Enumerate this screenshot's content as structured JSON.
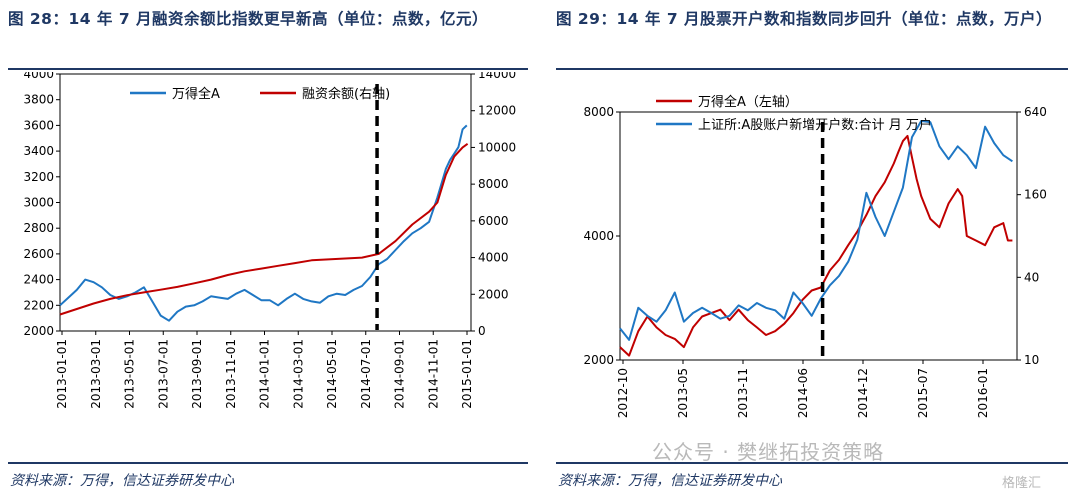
{
  "left": {
    "title": "图 28：14 年 7 月融资余额比指数更早新高（单位：点数，亿元）",
    "source": "资料来源：万得，信达证券研发中心",
    "chart_data": {
      "type": "line",
      "x_tick_labels": [
        "2013-01-01",
        "2013-03-01",
        "2013-05-01",
        "2013-07-01",
        "2013-09-01",
        "2013-11-01",
        "2014-01-01",
        "2014-03-01",
        "2014-05-01",
        "2014-07-01",
        "2014-09-01",
        "2014-11-01",
        "2015-01-01"
      ],
      "y_left_ticks": [
        "2000",
        "2200",
        "2400",
        "2600",
        "2800",
        "3000",
        "3200",
        "3400",
        "3600",
        "3800",
        "4000"
      ],
      "y_right_ticks": [
        "0",
        "2000",
        "4000",
        "6000",
        "8000",
        "10000",
        "12000",
        "14000"
      ],
      "ylim_left": [
        2000,
        4000
      ],
      "ylim_right": [
        0,
        14000
      ],
      "xlim": [
        0,
        24.5
      ],
      "vline_at": 18.9,
      "series": [
        {
          "name": "万得全A",
          "axis": "left",
          "color": "#1f77c4",
          "x": [
            0,
            0.5,
            1,
            1.5,
            2,
            2.5,
            3,
            3.5,
            4,
            4.5,
            5,
            5.5,
            6,
            6.5,
            7,
            7.5,
            8,
            8.5,
            9,
            9.5,
            10,
            10.5,
            11,
            11.5,
            12,
            12.5,
            13,
            13.5,
            14,
            14.5,
            15,
            15.5,
            16,
            16.5,
            17,
            17.5,
            18,
            18.5,
            19,
            19.5,
            20,
            20.5,
            21,
            21.5,
            22,
            22.5,
            23,
            23.25,
            23.5,
            23.75,
            24,
            24.25
          ],
          "y": [
            2200,
            2260,
            2320,
            2400,
            2380,
            2340,
            2280,
            2250,
            2270,
            2300,
            2340,
            2230,
            2120,
            2080,
            2150,
            2190,
            2200,
            2230,
            2270,
            2260,
            2250,
            2290,
            2320,
            2280,
            2240,
            2240,
            2200,
            2250,
            2290,
            2250,
            2230,
            2220,
            2270,
            2290,
            2280,
            2320,
            2350,
            2420,
            2520,
            2560,
            2630,
            2700,
            2760,
            2800,
            2850,
            3040,
            3260,
            3330,
            3380,
            3430,
            3570,
            3600
          ]
        },
        {
          "name": "融资余额(右轴)",
          "axis": "right",
          "color": "#c00000",
          "x": [
            0,
            1,
            2,
            3,
            4,
            5,
            6,
            7,
            8,
            9,
            10,
            11,
            12,
            13,
            14,
            15,
            16,
            17,
            18,
            19,
            20,
            21,
            22,
            22.5,
            23,
            23.5,
            24,
            24.3
          ],
          "y": [
            900,
            1200,
            1500,
            1750,
            1950,
            2100,
            2250,
            2400,
            2600,
            2800,
            3050,
            3250,
            3400,
            3550,
            3700,
            3850,
            3900,
            3950,
            4000,
            4200,
            4900,
            5800,
            6500,
            7000,
            8500,
            9500,
            10000,
            10200
          ]
        }
      ]
    }
  },
  "right": {
    "title": "图 29：14 年 7 月股票开户数和指数同步回升（单位：点数，万户）",
    "source": "资料来源：万得，信达证券研发中心",
    "chart_data": {
      "type": "line",
      "x_tick_labels": [
        "2012-10",
        "2013-05",
        "2013-11",
        "2014-06",
        "2014-12",
        "2015-07",
        "2016-01"
      ],
      "y_left_ticks": [
        "2000",
        "4000",
        "8000"
      ],
      "y_right_ticks": [
        "10",
        "40",
        "160",
        "640"
      ],
      "y_left_scale": "log",
      "y_right_scale": "log",
      "ylim_left": [
        2000,
        8000
      ],
      "ylim_right": [
        10,
        640
      ],
      "xlim": [
        0,
        43.5
      ],
      "vline_at": 22.2,
      "series": [
        {
          "name": "万得全A（左轴）",
          "axis": "left",
          "color": "#c00000",
          "x": [
            0,
            1,
            2,
            3,
            4,
            5,
            6,
            7,
            8,
            9,
            10,
            11,
            12,
            13,
            14,
            15,
            16,
            17,
            18,
            19,
            20,
            21,
            22,
            23,
            24,
            25,
            26,
            27,
            28,
            29,
            30,
            30.5,
            31,
            31.5,
            32,
            32.5,
            33,
            34,
            35,
            36,
            37,
            37.5,
            38,
            39,
            40,
            41,
            42,
            42.5,
            43
          ],
          "y": [
            2150,
            2050,
            2350,
            2550,
            2400,
            2300,
            2250,
            2150,
            2400,
            2550,
            2600,
            2650,
            2500,
            2650,
            2500,
            2400,
            2300,
            2350,
            2450,
            2600,
            2800,
            2950,
            3000,
            3300,
            3500,
            3800,
            4100,
            4500,
            5000,
            5400,
            6000,
            6400,
            6800,
            7000,
            6200,
            5500,
            5000,
            4400,
            4200,
            4800,
            5200,
            5000,
            4000,
            3900,
            3800,
            4200,
            4300,
            3900,
            3900
          ]
        },
        {
          "name": "上证所:A股账户新增开户数:合计  月  万户",
          "axis": "right",
          "color": "#1f77c4",
          "x": [
            0,
            1,
            2,
            3,
            4,
            5,
            6,
            7,
            8,
            9,
            10,
            11,
            12,
            13,
            14,
            15,
            16,
            17,
            18,
            19,
            20,
            21,
            22,
            23,
            24,
            25,
            26,
            27,
            28,
            29,
            30,
            31,
            32,
            33,
            34,
            35,
            36,
            37,
            38,
            39,
            40,
            41,
            42,
            43
          ],
          "y": [
            17,
            14,
            24,
            21,
            19,
            23,
            31,
            19,
            22,
            24,
            22,
            20,
            21,
            25,
            23,
            26,
            24,
            23,
            20,
            31,
            26,
            21,
            28,
            35,
            41,
            52,
            75,
            165,
            110,
            80,
            120,
            180,
            420,
            550,
            540,
            360,
            290,
            360,
            310,
            250,
            500,
            380,
            310,
            280
          ]
        }
      ]
    }
  },
  "watermark": "公众号 · 樊继拓投资策略",
  "watermark_small": "格隆汇"
}
